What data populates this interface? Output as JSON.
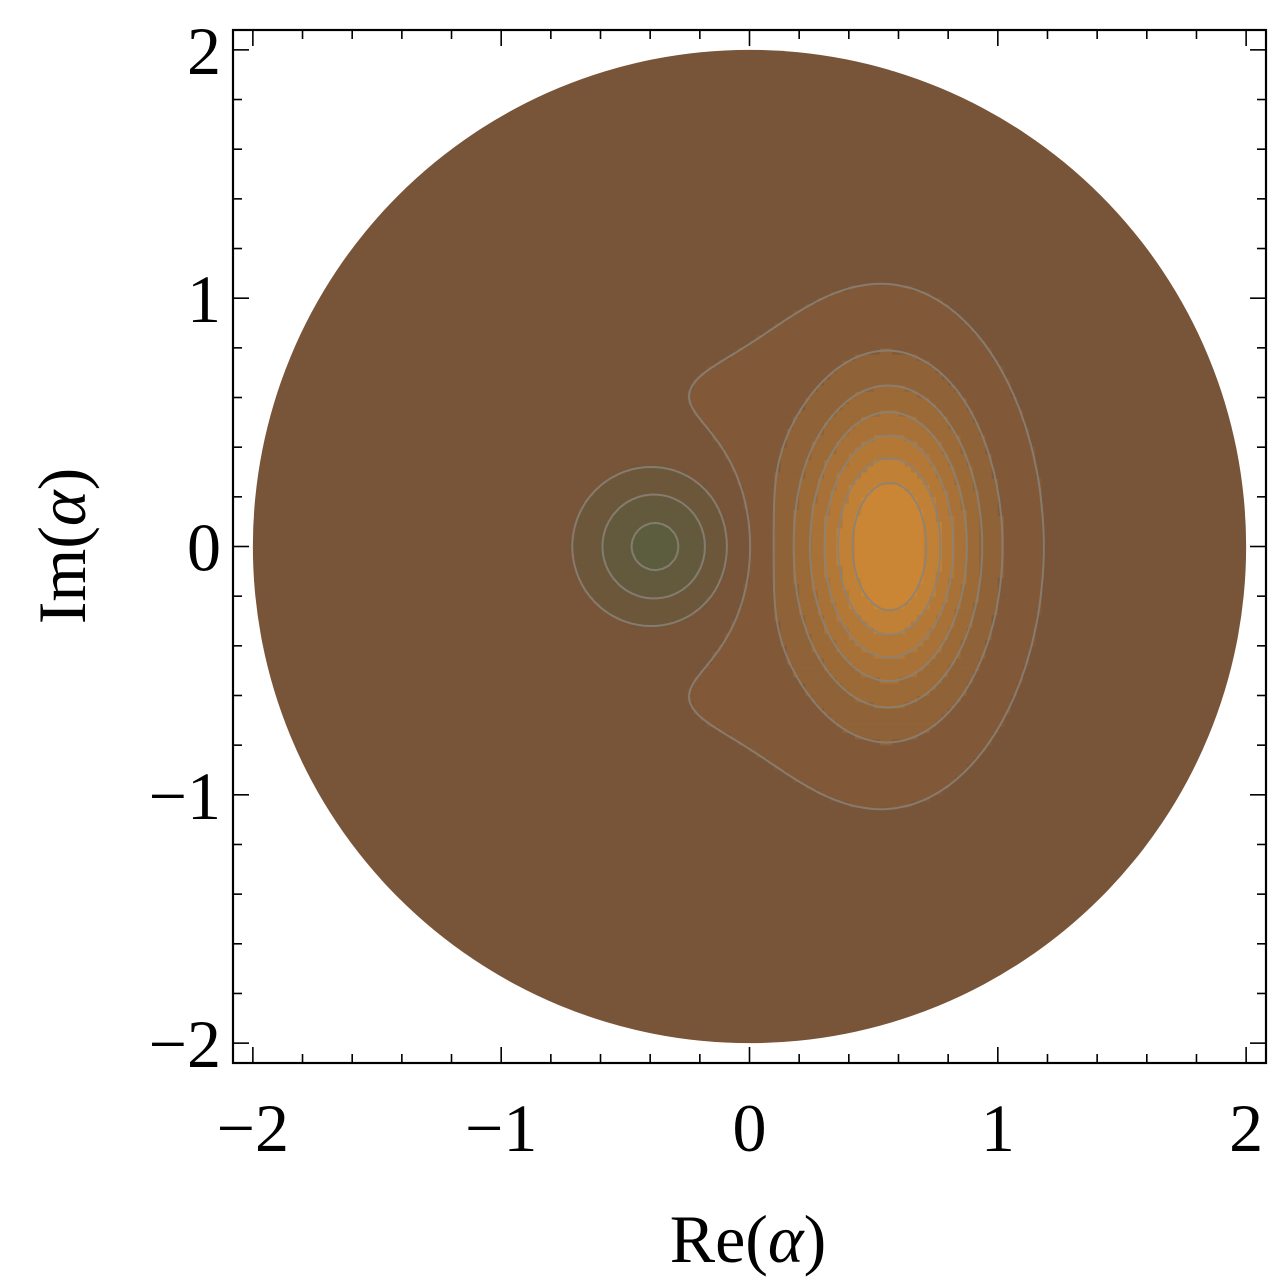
{
  "chart_data": {
    "type": "contour",
    "title": "",
    "xlabel": {
      "prefix": "Re(",
      "symbol": "α",
      "suffix": ")"
    },
    "ylabel": {
      "prefix": "Im(",
      "symbol": "α",
      "suffix": ")"
    },
    "xlim": [
      -2.08,
      2.08
    ],
    "ylim": [
      -2.08,
      2.08
    ],
    "region": {
      "shape": "disk",
      "center": [
        0,
        0
      ],
      "radius": 2
    },
    "major_ticks": [
      -2,
      -1,
      0,
      1,
      2
    ],
    "tick_labels": [
      "−2",
      "−1",
      "0",
      "1",
      "2"
    ],
    "minor_tick_step": 0.2,
    "grid": false,
    "legend": "none",
    "features": [
      {
        "kind": "minimum",
        "x": -0.37,
        "y": 0.0
      },
      {
        "kind": "maximum",
        "x": 0.57,
        "y": 0.0
      }
    ],
    "contour_count": 10,
    "colors": {
      "background_level": "#785439",
      "low_extreme": "#575d3f",
      "high_extreme": "#d18a35",
      "contour_line": "#8a8378",
      "frame": "#000000"
    }
  }
}
